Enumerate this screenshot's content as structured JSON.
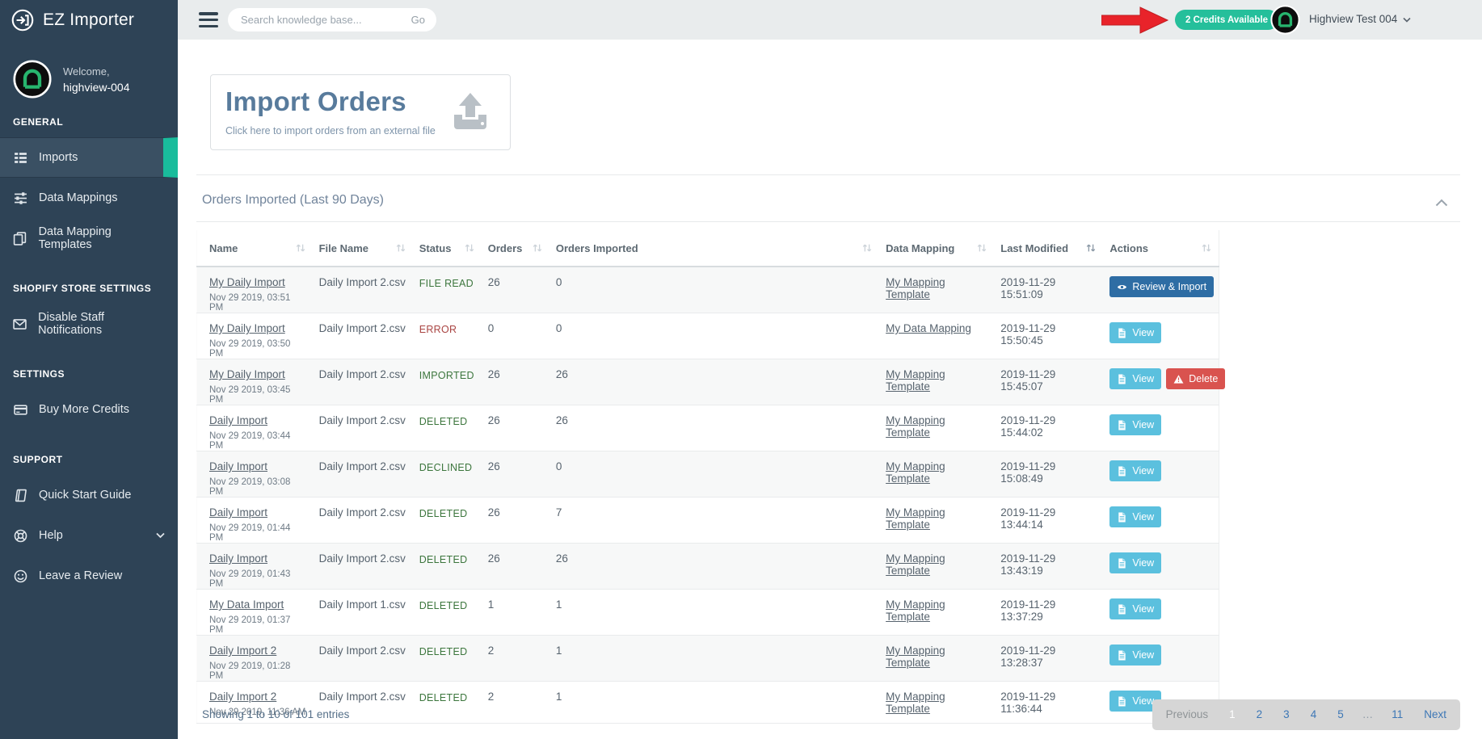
{
  "brand": {
    "name": "EZ Importer"
  },
  "sidebar": {
    "welcome": "Welcome,",
    "username": "highview-004",
    "sections": [
      {
        "label": "GENERAL",
        "items": [
          {
            "label": "Imports",
            "icon": "list",
            "active": true
          },
          {
            "label": "Data Mappings",
            "icon": "sliders",
            "active": false
          },
          {
            "label": "Data Mapping Templates",
            "icon": "copy",
            "active": false
          }
        ]
      },
      {
        "label": "SHOPIFY STORE SETTINGS",
        "items": [
          {
            "label": "Disable Staff Notifications",
            "icon": "envelope",
            "active": false
          }
        ]
      },
      {
        "label": "SETTINGS",
        "items": [
          {
            "label": "Buy More Credits",
            "icon": "credit-card",
            "active": false
          }
        ]
      },
      {
        "label": "SUPPORT",
        "items": [
          {
            "label": "Quick Start Guide",
            "icon": "book",
            "active": false
          },
          {
            "label": "Help",
            "icon": "life-ring",
            "active": false,
            "chevron": true
          },
          {
            "label": "Leave a Review",
            "icon": "smile",
            "active": false
          }
        ]
      }
    ]
  },
  "topbar": {
    "search_placeholder": "Search knowledge base...",
    "search_button": "Go",
    "credits_badge": "2 Credits Available",
    "user_name": "Highview Test 004"
  },
  "main": {
    "import_card": {
      "title": "Import Orders",
      "subtitle": "Click here to import orders from an external file"
    },
    "table_section": {
      "title": "Orders Imported (Last 90 Days)"
    },
    "table": {
      "columns": [
        "Name",
        "File Name",
        "Status",
        "Orders",
        "Orders Imported",
        "Data Mapping",
        "Last Modified",
        "Actions"
      ],
      "active_sort_column": "Last Modified",
      "action_defs": {
        "review-import": {
          "label": "Review & Import",
          "style": "primary",
          "icon": "eye"
        },
        "view": {
          "label": "View",
          "style": "info",
          "icon": "file"
        },
        "delete": {
          "label": "Delete",
          "style": "danger",
          "icon": "warning"
        }
      },
      "rows": [
        {
          "name": "My Daily Import",
          "date": "Nov 29 2019, 03:51 PM",
          "file": "Daily Import 2.csv",
          "status": "FILE READ",
          "status_type": "success",
          "orders": "26",
          "imported": "0",
          "mapping": "My Mapping Template",
          "modified": "2019-11-29 15:51:09",
          "actions": [
            "review-import"
          ]
        },
        {
          "name": "My Daily Import",
          "date": "Nov 29 2019, 03:50 PM",
          "file": "Daily Import 2.csv",
          "status": "ERROR",
          "status_type": "danger",
          "orders": "0",
          "imported": "0",
          "mapping": "My Data Mapping",
          "modified": "2019-11-29 15:50:45",
          "actions": [
            "view"
          ]
        },
        {
          "name": "My Daily Import",
          "date": "Nov 29 2019, 03:45 PM",
          "file": "Daily Import 2.csv",
          "status": "IMPORTED",
          "status_type": "success",
          "orders": "26",
          "imported": "26",
          "mapping": "My Mapping Template",
          "modified": "2019-11-29 15:45:07",
          "actions": [
            "view",
            "delete"
          ]
        },
        {
          "name": "Daily Import",
          "date": "Nov 29 2019, 03:44 PM",
          "file": "Daily Import 2.csv",
          "status": "DELETED",
          "status_type": "success",
          "orders": "26",
          "imported": "26",
          "mapping": "My Mapping Template",
          "modified": "2019-11-29 15:44:02",
          "actions": [
            "view"
          ]
        },
        {
          "name": "Daily Import",
          "date": "Nov 29 2019, 03:08 PM",
          "file": "Daily Import 2.csv",
          "status": "DECLINED",
          "status_type": "success",
          "orders": "26",
          "imported": "0",
          "mapping": "My Mapping Template",
          "modified": "2019-11-29 15:08:49",
          "actions": [
            "view"
          ]
        },
        {
          "name": "Daily Import",
          "date": "Nov 29 2019, 01:44 PM",
          "file": "Daily Import 2.csv",
          "status": "DELETED",
          "status_type": "success",
          "orders": "26",
          "imported": "7",
          "mapping": "My Mapping Template",
          "modified": "2019-11-29 13:44:14",
          "actions": [
            "view"
          ]
        },
        {
          "name": "Daily Import",
          "date": "Nov 29 2019, 01:43 PM",
          "file": "Daily Import 2.csv",
          "status": "DELETED",
          "status_type": "success",
          "orders": "26",
          "imported": "26",
          "mapping": "My Mapping Template",
          "modified": "2019-11-29 13:43:19",
          "actions": [
            "view"
          ]
        },
        {
          "name": "My Data Import",
          "date": "Nov 29 2019, 01:37 PM",
          "file": "Daily Import 1.csv",
          "status": "DELETED",
          "status_type": "success",
          "orders": "1",
          "imported": "1",
          "mapping": "My Mapping Template",
          "modified": "2019-11-29 13:37:29",
          "actions": [
            "view"
          ]
        },
        {
          "name": "Daily Import 2",
          "date": "Nov 29 2019, 01:28 PM",
          "file": "Daily Import 2.csv",
          "status": "DELETED",
          "status_type": "success",
          "orders": "2",
          "imported": "1",
          "mapping": "My Mapping Template",
          "modified": "2019-11-29 13:28:37",
          "actions": [
            "view"
          ]
        },
        {
          "name": "Daily Import 2",
          "date": "Nov 29 2019, 11:36 AM",
          "file": "Daily Import 2.csv",
          "status": "DELETED",
          "status_type": "success",
          "orders": "2",
          "imported": "1",
          "mapping": "My Mapping Template",
          "modified": "2019-11-29 11:36:44",
          "actions": [
            "view"
          ]
        }
      ]
    },
    "footer": {
      "showing": "Showing 1 to 10 of 101 entries",
      "pagination": [
        {
          "label": "Previous",
          "state": "disabled"
        },
        {
          "label": "1",
          "state": "active"
        },
        {
          "label": "2",
          "state": "link"
        },
        {
          "label": "3",
          "state": "link"
        },
        {
          "label": "4",
          "state": "link"
        },
        {
          "label": "5",
          "state": "link"
        },
        {
          "label": "…",
          "state": "ellipsis"
        },
        {
          "label": "11",
          "state": "link"
        },
        {
          "label": "Next",
          "state": "link"
        }
      ]
    }
  },
  "colors": {
    "sidebar_bg": "#2e4356",
    "sidebar_active_bg": "#3a5063",
    "accent_teal": "#19bc9c",
    "credits_badge": "#25bf9b",
    "annotation_arrow_red": "#e8232a",
    "status_success": "#3c763d",
    "status_error": "#a94442",
    "button_primary": "#2e6da4",
    "button_info": "#5bc0de",
    "button_danger": "#d9534f",
    "heading_blue": "#587b9c"
  }
}
